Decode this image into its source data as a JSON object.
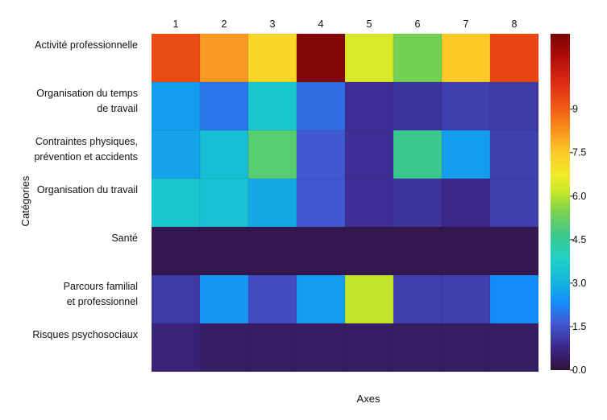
{
  "chart_data": {
    "type": "heatmap",
    "title": "",
    "xlabel": "Axes",
    "ylabel": "Catégories",
    "x_categories": [
      "1",
      "2",
      "3",
      "4",
      "5",
      "6",
      "7",
      "8"
    ],
    "y_categories": [
      [
        "Activité professionnelle"
      ],
      [
        "Organisation du temps",
        "de travail"
      ],
      [
        "Contraintes physiques,",
        "prévention et accidents"
      ],
      [
        "Organisation du travail"
      ],
      [
        "Santé"
      ],
      [
        "Parcours familial",
        "et professionnel"
      ],
      [
        "Risques psychosociaux"
      ]
    ],
    "values": [
      [
        9.3,
        8.2,
        7.2,
        11.5,
        6.4,
        5.4,
        7.5,
        9.4
      ],
      [
        2.6,
        2.0,
        3.5,
        1.9,
        0.9,
        1.0,
        1.2,
        1.1
      ],
      [
        2.7,
        3.3,
        5.0,
        1.6,
        0.9,
        4.6,
        2.6,
        1.2
      ],
      [
        3.5,
        3.4,
        2.8,
        1.6,
        0.9,
        1.0,
        0.8,
        1.2
      ],
      [
        0.2,
        0.2,
        0.2,
        0.2,
        0.2,
        0.2,
        0.2,
        0.2
      ],
      [
        1.1,
        2.5,
        1.4,
        2.6,
        6.1,
        1.2,
        1.2,
        2.3
      ],
      [
        0.6,
        0.4,
        0.4,
        0.4,
        0.4,
        0.4,
        0.4,
        0.4
      ]
    ],
    "colorbar": {
      "min": 0.0,
      "max": 11.6,
      "ticks": [
        0.0,
        1.5,
        3.0,
        4.5,
        6.0,
        7.5,
        9
      ],
      "tick_labels": [
        "0.0",
        "1.5",
        "3.0",
        "4.5",
        "6.0",
        "7.5",
        "9"
      ],
      "colormap": "turbo"
    }
  }
}
